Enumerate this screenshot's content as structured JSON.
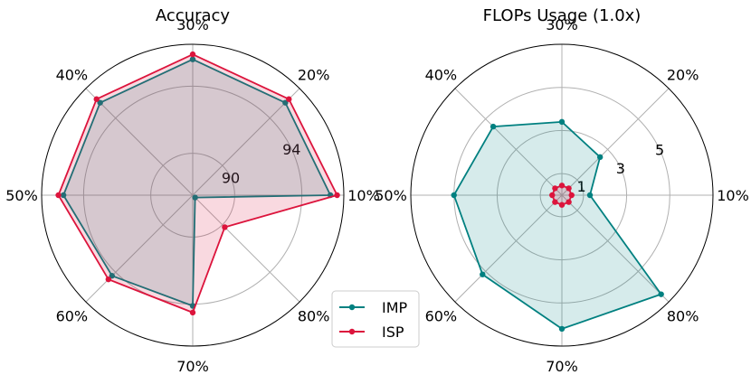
{
  "colors": {
    "imp": "#008080",
    "isp": "#dc143c",
    "grid": "#b0b0b0",
    "frame": "#000000"
  },
  "legend": {
    "items": [
      {
        "label": "IMP"
      },
      {
        "label": "ISP"
      }
    ]
  },
  "chart_data": [
    {
      "type": "radar",
      "title": "Accuracy",
      "categories": [
        "10%",
        "20%",
        "30%",
        "40%",
        "50%",
        "60%",
        "70%",
        "80%"
      ],
      "rlim": [
        87.5,
        96.5
      ],
      "rgrid_values": [
        90,
        94
      ],
      "rgrid_labels": [
        "90",
        "94"
      ],
      "grid": true,
      "series": [
        {
          "name": "IMP",
          "values": [
            95.7,
            95.3,
            95.6,
            95.3,
            95.2,
            94.3,
            94.1,
            87.7
          ]
        },
        {
          "name": "ISP",
          "values": [
            96.1,
            95.6,
            95.9,
            95.6,
            95.5,
            94.6,
            94.5,
            90.2
          ]
        }
      ]
    },
    {
      "type": "radar",
      "title": "FLOPs Usage (1.0x)",
      "categories": [
        "10%",
        "20%",
        "30%",
        "40%",
        "50%",
        "60%",
        "70%",
        "80%"
      ],
      "rlim": [
        0,
        7
      ],
      "rgrid_values": [
        1,
        3,
        5
      ],
      "rgrid_labels": [
        "1",
        "3",
        "5"
      ],
      "grid": true,
      "series": [
        {
          "name": "IMP",
          "values": [
            1.3,
            2.5,
            3.4,
            4.5,
            5.0,
            5.2,
            6.2,
            6.5
          ]
        },
        {
          "name": "ISP",
          "values": [
            0.45,
            0.45,
            0.45,
            0.45,
            0.45,
            0.45,
            0.45,
            0.45
          ]
        }
      ]
    }
  ]
}
